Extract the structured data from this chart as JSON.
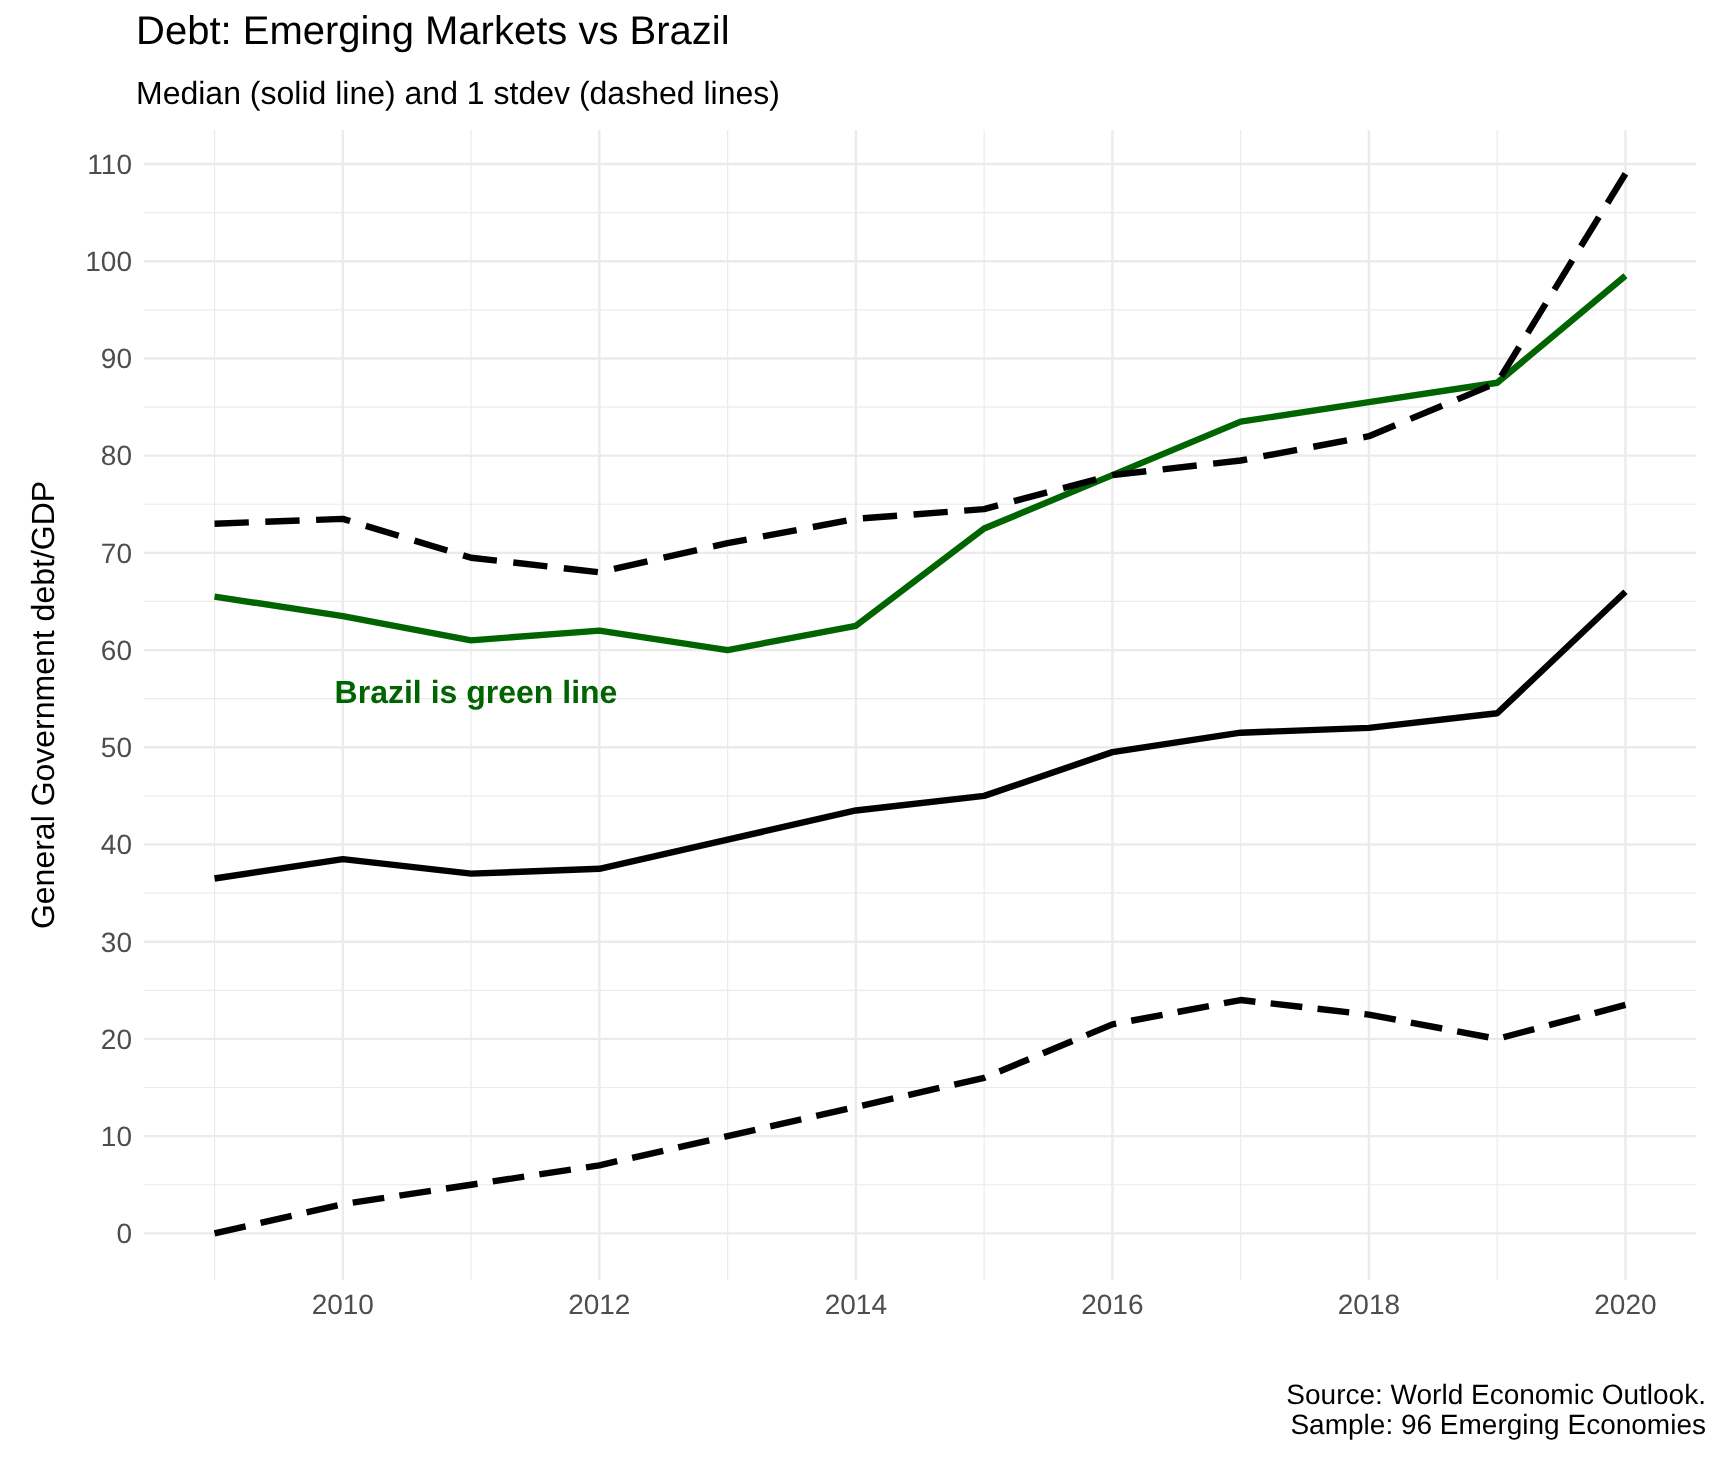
{
  "chart_data": {
    "type": "line",
    "title": "Debt: Emerging Markets vs Brazil",
    "subtitle": "Median (solid line) and 1 stdev (dashed lines)",
    "ylabel": "General Government debt/GDP",
    "x": [
      2009,
      2010,
      2011,
      2012,
      2013,
      2014,
      2015,
      2016,
      2017,
      2018,
      2019,
      2020
    ],
    "series": [
      {
        "color": "#006400",
        "line_style": "solid",
        "values": [
          65.5,
          63.5,
          61,
          62,
          60,
          62.5,
          72.5,
          78,
          83.5,
          85.5,
          87.5,
          98.5
        ]
      },
      {
        "color": "#000000",
        "line_style": "solid",
        "values": [
          36.5,
          38.5,
          37,
          37.5,
          40.5,
          43.5,
          45,
          49.5,
          51.5,
          52,
          53.5,
          66
        ]
      },
      {
        "color": "#000000",
        "line_style": "dashed",
        "values": [
          73,
          73.5,
          69.5,
          68,
          71,
          73.5,
          74.5,
          78,
          79.5,
          82,
          87.5,
          109
        ]
      },
      {
        "color": "#000000",
        "line_style": "dashed",
        "values": [
          0,
          3,
          5,
          7,
          10,
          13,
          16,
          21.5,
          24,
          22.5,
          20,
          23.5
        ]
      }
    ],
    "xlim": [
      2008.45,
      2020.55
    ],
    "xticks": [
      {
        "value": 2009,
        "label": null
      },
      2010,
      {
        "value": 2011,
        "label": null
      },
      2012,
      {
        "value": 2013,
        "label": null
      },
      2014,
      {
        "value": 2015,
        "label": null
      },
      2016,
      {
        "value": 2017,
        "label": null
      },
      2018,
      {
        "value": 2019,
        "label": null
      },
      2020
    ],
    "ylim": [
      -4.8,
      113.5
    ],
    "yticks": [
      0,
      {
        "value": 5,
        "label": null
      },
      10,
      {
        "value": 15,
        "label": null
      },
      20,
      {
        "value": 25,
        "label": null
      },
      30,
      {
        "value": 35,
        "label": null
      },
      40,
      {
        "value": 45,
        "label": null
      },
      50,
      {
        "value": 55,
        "label": null
      },
      60,
      {
        "value": 65,
        "label": null
      },
      70,
      {
        "value": 75,
        "label": null
      },
      80,
      {
        "value": 85,
        "label": null
      },
      90,
      {
        "value": 95,
        "label": null
      },
      100,
      {
        "value": 105,
        "label": null
      },
      110
    ],
    "grid": true,
    "annotations": [
      "Brazil is green line",
      "Source: World Economic Outlook.",
      "Sample: 96 Emerging Economies"
    ]
  }
}
